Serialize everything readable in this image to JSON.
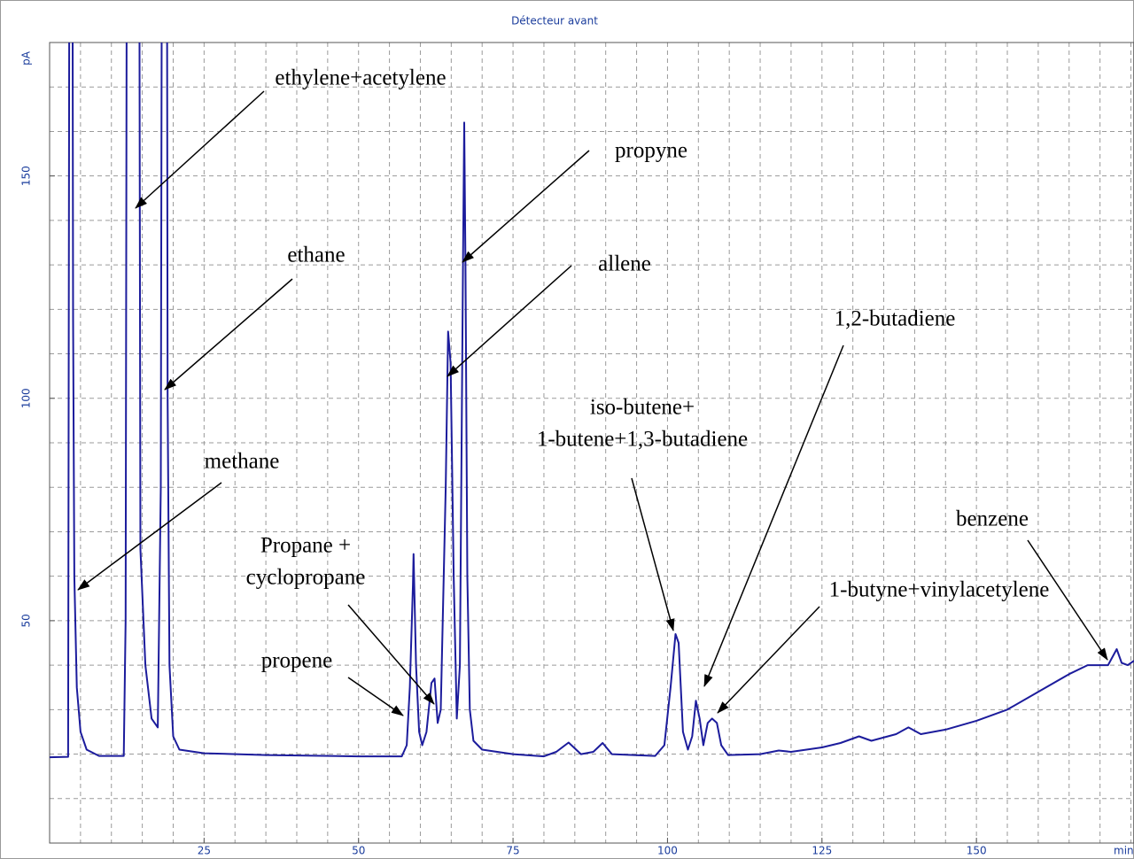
{
  "chart_data": {
    "type": "line",
    "title": "Détecteur avant",
    "ylabel": "pA",
    "xlabel": "min",
    "color": "#1c1c9c",
    "grid": true,
    "xlim": [
      0,
      175.5
    ],
    "ylim": [
      0,
      180
    ],
    "xticks": [
      25,
      50,
      75,
      100,
      125,
      150
    ],
    "yticks": [
      50,
      100,
      150
    ],
    "x_gridlines": [
      5,
      10,
      15,
      20,
      25,
      30,
      35,
      40,
      45,
      50,
      55,
      60,
      65,
      70,
      75,
      80,
      85,
      90,
      95,
      100,
      105,
      110,
      115,
      120,
      125,
      130,
      135,
      140,
      145,
      150,
      155,
      160,
      165,
      170,
      175
    ],
    "y_gridlines": [
      10,
      20,
      30,
      40,
      50,
      60,
      70,
      80,
      90,
      100,
      110,
      120,
      130,
      140,
      150,
      160,
      170
    ],
    "x": [
      0,
      3.0,
      3.3,
      3.6,
      3.8,
      4.0,
      4.4,
      5.0,
      6.0,
      8.0,
      12.0,
      12.3,
      12.6,
      14.4,
      14.7,
      15.5,
      16.5,
      17.5,
      18.0,
      18.3,
      18.9,
      19.1,
      19.4,
      20.0,
      21.0,
      25,
      35,
      50,
      57,
      57.8,
      58.3,
      58.8,
      58.9,
      59.3,
      59.8,
      60.3,
      61,
      61.8,
      62.3,
      62.8,
      63.3,
      64.1,
      64.5,
      64.9,
      65.4,
      65.9,
      66.4,
      66.9,
      67.1,
      67.3,
      67.6,
      68.0,
      68.6,
      70,
      75,
      80,
      82,
      84,
      86,
      88,
      89.5,
      91,
      98,
      99.5,
      100.5,
      101.3,
      101.8,
      102.5,
      103.3,
      104,
      104.6,
      105.2,
      105.8,
      106.5,
      107.2,
      108.0,
      108.7,
      109.8,
      115,
      118,
      120,
      125,
      128,
      131,
      133,
      137,
      139,
      141,
      145,
      150,
      155,
      160,
      165,
      168,
      171.3,
      172.7,
      173.5,
      174.5,
      175.5
    ],
    "values": [
      19.3,
      19.4,
      300,
      300,
      118,
      60,
      35,
      25,
      21,
      19.6,
      19.6,
      50,
      300,
      300,
      66,
      40,
      28,
      26,
      80,
      300,
      300,
      100,
      40,
      24,
      21,
      20.2,
      19.8,
      19.5,
      19.5,
      22,
      35,
      58,
      65,
      40,
      25,
      22,
      25,
      36,
      37,
      27,
      30,
      80,
      115,
      108,
      60,
      28,
      40,
      130,
      162,
      130,
      60,
      30,
      23,
      21,
      20,
      19.5,
      20.5,
      22.6,
      20,
      20.5,
      22.5,
      20,
      19.6,
      22,
      35,
      47,
      45,
      25,
      21,
      24,
      32,
      28,
      22,
      27,
      28,
      27,
      22,
      19.8,
      20,
      20.8,
      20.5,
      21.5,
      22.5,
      24,
      23,
      24.5,
      26,
      24.5,
      25.5,
      27.5,
      30,
      34,
      38,
      40,
      40,
      43.6,
      40.5,
      40,
      41
    ]
  },
  "annotations": [
    {
      "lines": [
        "ethylene+acetylene"
      ]
    },
    {
      "lines": [
        "ethane"
      ]
    },
    {
      "lines": [
        "methane"
      ]
    },
    {
      "lines": [
        "propyne"
      ]
    },
    {
      "lines": [
        "allene"
      ]
    },
    {
      "lines": [
        "1,2-butadiene"
      ]
    },
    {
      "lines": [
        "iso-butene+",
        "1-butene+1,3-butadiene"
      ]
    },
    {
      "lines": [
        "benzene"
      ]
    },
    {
      "lines": [
        "1-butyne+vinylacetylene"
      ]
    },
    {
      "lines": [
        "Propane +",
        "cyclopropane"
      ]
    },
    {
      "lines": [
        "propene"
      ]
    }
  ]
}
